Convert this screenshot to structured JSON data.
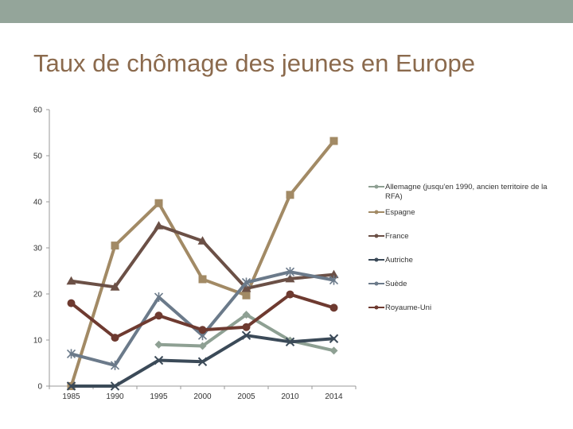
{
  "slide": {
    "title": "Taux de chômage des jeunes en Europe",
    "band_color": "#94a59a",
    "title_color": "#8b6a4d"
  },
  "chart_data": {
    "type": "line",
    "title": "",
    "xlabel": "",
    "ylabel": "",
    "categories": [
      "1985",
      "1990",
      "1995",
      "2000",
      "2005",
      "2010",
      "2014"
    ],
    "ylim": [
      0,
      60
    ],
    "yticks": [
      0,
      10,
      20,
      30,
      40,
      50,
      60
    ],
    "legend_position": "right",
    "series": [
      {
        "name": "Allemagne (jusqu'en 1990, ancien territoire de la RFA)",
        "color": "#8ea093",
        "marker": "diamond",
        "values": [
          null,
          null,
          9,
          8.7,
          15.5,
          9.9,
          7.7
        ]
      },
      {
        "name": "Espagne",
        "color": "#a28a65",
        "marker": "square",
        "values": [
          0,
          30.5,
          39.7,
          23.2,
          19.7,
          41.5,
          53.2
        ]
      },
      {
        "name": "France",
        "color": "#6b5046",
        "marker": "triangle",
        "values": [
          22.8,
          21.5,
          34.8,
          31.5,
          21.2,
          23.3,
          24.2
        ]
      },
      {
        "name": "Autriche",
        "color": "#3b4a58",
        "marker": "x",
        "values": [
          0,
          0,
          5.6,
          5.3,
          11,
          9.6,
          10.3
        ]
      },
      {
        "name": "Suède",
        "color": "#6b7a8a",
        "marker": "star",
        "values": [
          7,
          4.5,
          19.3,
          11,
          22.5,
          24.8,
          23
        ]
      },
      {
        "name": "Royaume-Uni",
        "color": "#6e3a30",
        "marker": "circle",
        "values": [
          18,
          10.5,
          15.3,
          12.2,
          12.8,
          19.9,
          17
        ]
      }
    ]
  }
}
